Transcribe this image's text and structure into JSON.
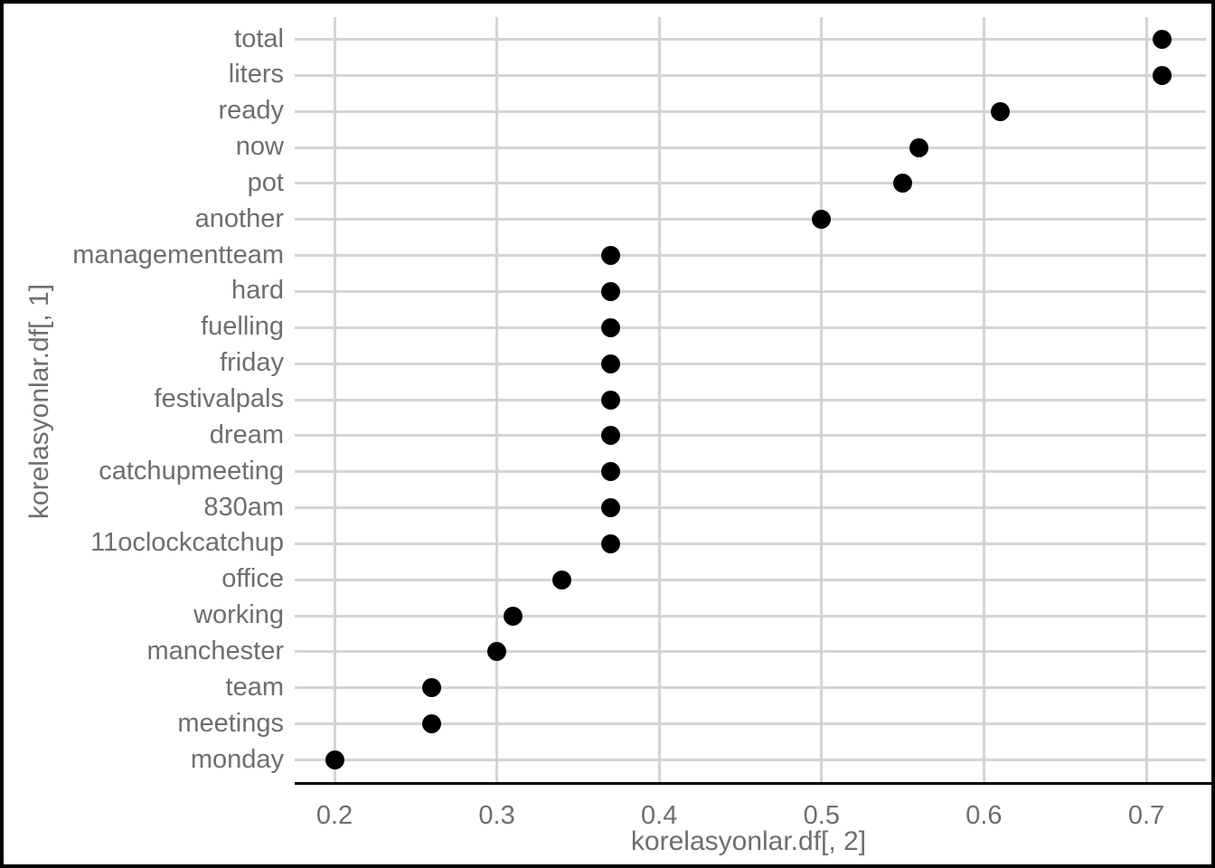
{
  "figure": {
    "background_color": "#ffffff",
    "border_color": "#000000"
  },
  "chart_data": {
    "type": "scatter",
    "subtype": "cleveland-dot-plot",
    "orientation": "horizontal",
    "title": "",
    "xlabel": "korelasyonlar.df[, 2]",
    "ylabel": "korelasyonlar.df[, 1]",
    "categories": [
      "total",
      "liters",
      "ready",
      "now",
      "pot",
      "another",
      "managementteam",
      "hard",
      "fuelling",
      "friday",
      "festivalpals",
      "dream",
      "catchupmeeting",
      "830am",
      "11oclockcatchup",
      "office",
      "working",
      "manchester",
      "team",
      "meetings",
      "monday"
    ],
    "values": [
      0.71,
      0.71,
      0.61,
      0.56,
      0.55,
      0.5,
      0.37,
      0.37,
      0.37,
      0.37,
      0.37,
      0.37,
      0.37,
      0.37,
      0.37,
      0.34,
      0.31,
      0.3,
      0.26,
      0.26,
      0.2
    ],
    "x_ticks": [
      0.2,
      0.3,
      0.4,
      0.5,
      0.6,
      0.7
    ],
    "x_tick_labels": [
      "0.2",
      "0.3",
      "0.4",
      "0.5",
      "0.6",
      "0.7"
    ],
    "xlim": [
      0.178,
      0.737
    ],
    "grid": "major",
    "legend": "none",
    "point_color": "#000000",
    "gridline_color": "#d4d4d4",
    "axis_line_color": "#000000",
    "axis_text_color": "#6e6e6e"
  }
}
